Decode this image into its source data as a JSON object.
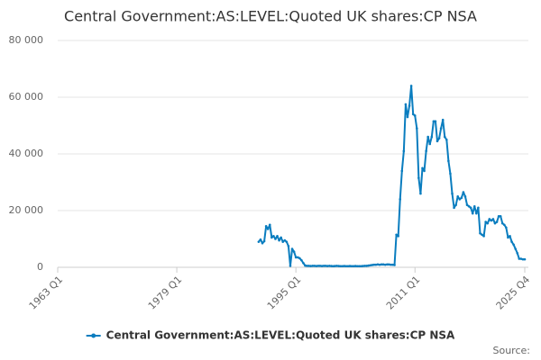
{
  "chart_data": {
    "type": "line",
    "title": "Central Government:AS:LEVEL:Quoted UK shares:CP NSA",
    "source": "Source:",
    "categories": [
      "1963 Q1",
      null,
      null,
      null,
      null,
      null,
      null,
      null,
      null,
      null,
      null,
      null,
      null,
      null,
      null,
      null,
      null,
      null,
      null,
      null,
      null,
      null,
      null,
      null,
      null,
      null,
      null,
      null,
      null,
      null,
      null,
      null,
      null,
      null,
      null,
      null,
      null,
      null,
      null,
      null,
      null,
      null,
      null,
      null,
      null,
      null,
      null,
      null,
      null,
      null,
      null,
      null,
      null,
      null,
      null,
      null,
      null,
      null,
      null,
      null,
      null,
      null,
      null,
      null,
      "1979 Q1",
      null,
      null,
      null,
      null,
      null,
      null,
      null,
      null,
      null,
      null,
      null,
      null,
      null,
      null,
      null,
      null,
      null,
      null,
      null,
      null,
      null,
      null,
      null,
      null,
      null,
      null,
      null,
      null,
      null,
      null,
      null,
      null,
      null,
      null,
      null,
      null,
      null,
      null,
      null,
      null,
      null,
      null,
      null,
      null,
      null,
      null,
      null,
      null,
      null,
      null,
      null,
      null,
      null,
      null,
      null,
      null,
      null,
      null,
      null,
      null,
      null,
      null,
      null,
      "1995 Q1",
      null,
      null,
      null,
      null,
      null,
      null,
      null,
      null,
      null,
      null,
      null,
      null,
      null,
      null,
      null,
      null,
      null,
      null,
      null,
      null,
      null,
      null,
      null,
      null,
      null,
      null,
      null,
      null,
      null,
      null,
      null,
      null,
      null,
      null,
      null,
      null,
      null,
      null,
      null,
      null,
      null,
      null,
      null,
      null,
      null,
      null,
      null,
      null,
      null,
      null,
      null,
      null,
      null,
      null,
      null,
      null,
      null,
      null,
      null,
      null,
      null,
      null,
      null,
      "2011 Q1",
      null,
      null,
      null,
      null,
      null,
      null,
      null,
      null,
      null,
      null,
      null,
      null,
      null,
      null,
      null,
      null,
      null,
      null,
      null,
      null,
      null,
      null,
      null,
      null,
      null,
      null,
      null,
      null,
      null,
      null,
      null,
      null,
      null,
      null,
      null,
      null,
      null,
      null,
      null,
      null,
      null,
      null,
      null,
      null,
      null,
      null,
      null,
      null,
      null,
      null,
      null,
      null,
      null,
      null,
      null,
      null,
      null,
      null,
      "2025 Q4"
    ],
    "series": [
      {
        "name": "Central Government:AS:LEVEL:Quoted UK shares:CP NSA",
        "color": "#0a7dbf",
        "values": [
          null,
          null,
          null,
          null,
          null,
          null,
          null,
          null,
          null,
          null,
          null,
          null,
          null,
          null,
          null,
          null,
          null,
          null,
          null,
          null,
          null,
          null,
          null,
          null,
          null,
          null,
          null,
          null,
          null,
          null,
          null,
          null,
          null,
          null,
          null,
          null,
          null,
          null,
          null,
          null,
          null,
          null,
          null,
          null,
          null,
          null,
          null,
          null,
          null,
          null,
          null,
          null,
          null,
          null,
          null,
          null,
          null,
          null,
          null,
          null,
          null,
          null,
          null,
          null,
          null,
          null,
          null,
          null,
          null,
          null,
          null,
          null,
          null,
          null,
          null,
          null,
          null,
          null,
          null,
          null,
          null,
          null,
          null,
          null,
          null,
          null,
          null,
          null,
          null,
          null,
          null,
          null,
          null,
          null,
          null,
          null,
          null,
          null,
          null,
          null,
          null,
          null,
          null,
          null,
          null,
          null,
          null,
          null,
          9000,
          9800,
          8500,
          9200,
          14500,
          13500,
          15000,
          10500,
          11000,
          10000,
          11000,
          9500,
          10500,
          9000,
          9500,
          9000,
          7500,
          500,
          6500,
          5500,
          3500,
          3500,
          3200,
          2500,
          1500,
          600,
          500,
          500,
          450,
          500,
          500,
          450,
          500,
          500,
          450,
          500,
          500,
          450,
          500,
          450,
          400,
          450,
          500,
          450,
          400,
          400,
          450,
          400,
          400,
          450,
          400,
          400,
          450,
          400,
          400,
          400,
          450,
          500,
          500,
          600,
          700,
          800,
          900,
          900,
          1000,
          900,
          1000,
          1000,
          900,
          1000,
          1000,
          900,
          900,
          800,
          11500,
          11000,
          24000,
          34000,
          41000,
          57500,
          53000,
          57000,
          64000,
          54000,
          53500,
          49000,
          31500,
          26000,
          35000,
          34000,
          41000,
          46000,
          43500,
          46000,
          51500,
          51500,
          44500,
          45500,
          49000,
          52000,
          46000,
          45000,
          37500,
          33000,
          26000,
          21000,
          22000,
          25000,
          24000,
          24500,
          26500,
          25000,
          22000,
          21500,
          21000,
          19000,
          21500,
          19000,
          21000,
          12000,
          11500,
          11000,
          16000,
          15500,
          17000,
          16500,
          17000,
          15500,
          16000,
          18000,
          18000,
          15500,
          15000,
          14000,
          10500,
          11000,
          9000,
          8000,
          6500,
          5000,
          3000,
          3000,
          2800,
          2800
        ]
      }
    ],
    "ylim": [
      0,
      80000
    ],
    "yticks": [
      0,
      {
        "value": 20000,
        "label": "20 000"
      },
      {
        "value": 40000,
        "label": "40 000"
      },
      {
        "value": 60000,
        "label": "60 000"
      },
      {
        "value": 80000,
        "label": "80 000"
      }
    ],
    "grid": true
  }
}
